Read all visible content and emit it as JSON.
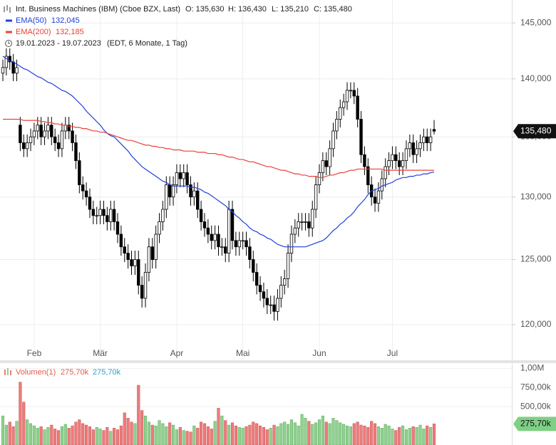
{
  "chart_data": [
    {
      "type": "candlestick",
      "title": "Int. Business Machines (IBM) (Cboe BZX, Last)",
      "ohlc_labels": [
        "O: 135,630",
        "H: 136,430",
        "L: 135,210",
        "C: 135,480"
      ],
      "date_range": "19.01.2023 - 19.07.2023",
      "date_note": "(EDT, 6 Monate, 1 Tag)",
      "last_label": "135,480",
      "log_scale": true,
      "grid": true,
      "up_color": "#ffffff",
      "down_color": "#000000",
      "categories": [
        null,
        null,
        null,
        null,
        null,
        null,
        null,
        null,
        null,
        "Feb",
        null,
        null,
        null,
        null,
        null,
        null,
        null,
        null,
        null,
        null,
        null,
        null,
        null,
        null,
        null,
        null,
        null,
        null,
        "Mär",
        null,
        null,
        null,
        null,
        null,
        null,
        null,
        null,
        null,
        null,
        null,
        null,
        null,
        null,
        null,
        null,
        null,
        null,
        null,
        null,
        null,
        "Apr",
        null,
        null,
        null,
        null,
        null,
        null,
        null,
        null,
        null,
        null,
        null,
        null,
        null,
        null,
        null,
        null,
        null,
        null,
        "Mai",
        null,
        null,
        null,
        null,
        null,
        null,
        null,
        null,
        null,
        null,
        null,
        null,
        null,
        null,
        null,
        null,
        null,
        null,
        null,
        null,
        null,
        "Jun",
        null,
        null,
        null,
        null,
        null,
        null,
        null,
        null,
        null,
        null,
        null,
        null,
        null,
        null,
        null,
        null,
        null,
        null,
        null,
        null,
        "Jul",
        null,
        null,
        null,
        null,
        null,
        null,
        null,
        null,
        null,
        null,
        null,
        null
      ],
      "open": [
        140.5,
        141,
        142,
        141.5,
        140.5,
        136,
        134.5,
        134,
        134.5,
        135,
        135.5,
        136,
        135,
        135.5,
        136,
        135,
        134.5,
        134,
        135.5,
        136,
        135.5,
        134.5,
        133,
        131,
        130.5,
        130,
        129,
        128.5,
        128.5,
        129,
        128.5,
        128,
        129,
        128,
        127,
        126,
        125.5,
        125,
        124.5,
        125,
        123,
        122,
        124,
        126,
        125,
        127,
        128,
        129,
        131,
        130,
        131,
        132,
        131.5,
        132,
        131,
        130,
        130.5,
        129,
        128,
        127.5,
        127,
        126.5,
        127,
        126,
        126,
        125.5,
        129,
        126.5,
        126,
        126.5,
        126.5,
        126,
        125,
        124,
        123,
        122.5,
        122,
        121.5,
        121.5,
        121,
        122,
        123,
        123.5,
        125.5,
        127,
        127.5,
        128,
        128,
        128,
        127.5,
        129,
        131,
        132,
        133,
        132.5,
        134,
        135.5,
        136.5,
        137.5,
        138,
        139,
        139,
        138.5,
        136.5,
        133.5,
        132.5,
        131,
        130,
        129.5,
        130.5,
        131.5,
        132.5,
        133,
        133.5,
        133,
        132.5,
        133,
        134,
        134.5,
        133.5,
        134,
        134.5,
        135,
        134.5,
        135.63
      ],
      "high": [
        141.7,
        142.7,
        142.7,
        142.2,
        141.7,
        136.7,
        135.2,
        135.2,
        135.7,
        136.2,
        136.7,
        136.7,
        136.2,
        136.7,
        136.7,
        135.7,
        135.2,
        136.2,
        136.7,
        136.7,
        136.2,
        135.2,
        133.7,
        131.7,
        131.2,
        130.7,
        129.7,
        129.2,
        129.7,
        129.7,
        129.2,
        129.7,
        129.7,
        128.7,
        127.7,
        126.7,
        126.2,
        125.7,
        125.7,
        125.7,
        123.7,
        124.7,
        126.7,
        126.7,
        127.7,
        128.7,
        129.7,
        131.7,
        131.7,
        131.7,
        132.7,
        132.7,
        132.7,
        132.7,
        131.7,
        131.2,
        131.2,
        129.7,
        128.7,
        128.2,
        127.7,
        127.7,
        127.7,
        126.7,
        126.7,
        129.7,
        129.7,
        127.2,
        127.2,
        127.2,
        127.2,
        126.7,
        125.7,
        124.7,
        123.7,
        123.2,
        122.7,
        122.2,
        122.2,
        122.7,
        123.7,
        124.2,
        126.2,
        127.7,
        128.2,
        128.7,
        128.7,
        128.7,
        128.7,
        129.7,
        131.7,
        132.7,
        133.7,
        133.7,
        134.7,
        136.2,
        137.2,
        138.2,
        138.7,
        139.7,
        139.7,
        139.7,
        139.2,
        137.2,
        134.2,
        133.2,
        131.7,
        130.7,
        131.2,
        132.2,
        133.2,
        133.7,
        134.2,
        134.2,
        133.7,
        133.7,
        134.7,
        135.2,
        135.2,
        134.7,
        135.2,
        135.7,
        135.7,
        135.7,
        136.43
      ],
      "low": [
        139.8,
        140.3,
        140.8,
        139.8,
        139.8,
        133.8,
        133.3,
        133.3,
        133.8,
        134.3,
        134.8,
        134.3,
        134.3,
        134.8,
        134.3,
        133.8,
        133.3,
        133.3,
        134.8,
        134.8,
        133.8,
        132.3,
        130.3,
        129.8,
        129.3,
        128.3,
        127.8,
        127.8,
        127.8,
        127.8,
        127.3,
        127.3,
        127.3,
        126.3,
        125.3,
        124.8,
        124.3,
        123.8,
        123.8,
        122.3,
        121.3,
        121.3,
        123.3,
        124.3,
        124.3,
        126.3,
        127.3,
        128.3,
        129.3,
        129.3,
        130.3,
        130.8,
        130.8,
        130.3,
        129.3,
        129.3,
        128.3,
        127.3,
        126.8,
        126.3,
        125.8,
        125.8,
        125.3,
        125.3,
        124.8,
        124.8,
        125.8,
        125.3,
        125.3,
        125.8,
        125.3,
        124.3,
        123.3,
        122.3,
        121.8,
        121.3,
        120.8,
        120.8,
        120.3,
        120.3,
        121.3,
        122.3,
        122.8,
        124.8,
        126.3,
        126.8,
        127.3,
        127.3,
        126.8,
        126.8,
        128.3,
        130.3,
        131.3,
        131.8,
        131.8,
        133.3,
        134.8,
        135.8,
        136.8,
        137.3,
        138.3,
        137.8,
        135.8,
        132.8,
        131.8,
        130.3,
        129.3,
        128.8,
        128.8,
        129.8,
        130.8,
        131.8,
        132.3,
        132.3,
        131.8,
        131.8,
        132.3,
        133.3,
        132.8,
        132.8,
        133.3,
        133.8,
        133.8,
        133.8,
        135.21
      ],
      "close": [
        141,
        142,
        141.5,
        140.5,
        141,
        134.5,
        134,
        134.5,
        135,
        135.5,
        136,
        135,
        135.5,
        136,
        135,
        134.5,
        134,
        135.5,
        136,
        135.5,
        134.5,
        133,
        131,
        130.5,
        130,
        129,
        128.5,
        128.5,
        129,
        128.5,
        128,
        129,
        128,
        127,
        126,
        125.5,
        125,
        124.5,
        125,
        123,
        122,
        124,
        126,
        125,
        127,
        128,
        129,
        131,
        130,
        131,
        132,
        131.5,
        132,
        131,
        130,
        130.5,
        129,
        128,
        127.5,
        127,
        126.5,
        127,
        126,
        126,
        125.5,
        129,
        126.5,
        126,
        126.5,
        126.5,
        126,
        125,
        124,
        123,
        122.5,
        122,
        121.5,
        121.5,
        121,
        122,
        123,
        123.5,
        125.5,
        127,
        127.5,
        128,
        128,
        128,
        127.5,
        129,
        131,
        132,
        133,
        132.5,
        134,
        135.5,
        136.5,
        137.5,
        138,
        139,
        139,
        138.5,
        136.5,
        133.5,
        132.5,
        131,
        130,
        129.5,
        130.5,
        131.5,
        132.5,
        133,
        133.5,
        133,
        132.5,
        133,
        134,
        134.5,
        133.5,
        134,
        134.5,
        135,
        134.5,
        135,
        135.48
      ],
      "lines": [
        {
          "name": "EMA(50)",
          "color": "#1f3fdb",
          "last_label": "132,045",
          "values": [
            142,
            141.8,
            141.6,
            141.5,
            141.3,
            141.1,
            140.9,
            140.8,
            140.6,
            140.4,
            140.2,
            140.1,
            139.9,
            139.7,
            139.6,
            139.4,
            139.2,
            139,
            138.9,
            138.7,
            138.5,
            138.2,
            137.9,
            137.6,
            137.2,
            136.9,
            136.6,
            136.3,
            136,
            135.6,
            135.3,
            135.1,
            135,
            134.7,
            134.4,
            134.1,
            133.8,
            133.4,
            133.1,
            132.8,
            132.5,
            132.3,
            132.1,
            131.9,
            131.7,
            131.5,
            131.3,
            131.2,
            131,
            130.9,
            130.9,
            130.9,
            130.9,
            130.9,
            130.8,
            130.8,
            130.7,
            130.6,
            130.4,
            130.3,
            130.1,
            129.9,
            129.7,
            129.5,
            129.3,
            129,
            128.8,
            128.5,
            128.3,
            128,
            127.8,
            127.5,
            127.3,
            127.2,
            127,
            126.9,
            126.7,
            126.6,
            126.4,
            126.2,
            126.1,
            126,
            126,
            126,
            126,
            126,
            126,
            126,
            126.1,
            126.2,
            126.3,
            126.4,
            126.5,
            126.7,
            127,
            127.3,
            127.5,
            127.8,
            128,
            128.3,
            128.5,
            128.8,
            129.2,
            129.5,
            129.8,
            130.2,
            130.5,
            130.6,
            130.7,
            130.9,
            131,
            131.1,
            131.2,
            131.4,
            131.5,
            131.6,
            131.6,
            131.7,
            131.7,
            131.8,
            131.8,
            131.9,
            131.9,
            132,
            132.05
          ]
        },
        {
          "name": "EMA(200)",
          "color": "#e8413a",
          "last_label": "132,185",
          "values": [
            136.5,
            136.5,
            136.5,
            136.5,
            136.5,
            136.5,
            136.4,
            136.4,
            136.4,
            136.4,
            136.4,
            136.3,
            136.3,
            136.2,
            136.2,
            136.1,
            136.1,
            136,
            136,
            135.9,
            135.9,
            135.8,
            135.8,
            135.7,
            135.7,
            135.6,
            135.5,
            135.5,
            135.4,
            135.4,
            135.3,
            135.2,
            135.1,
            135,
            134.9,
            134.8,
            134.7,
            134.7,
            134.6,
            134.5,
            134.4,
            134.3,
            134.3,
            134.2,
            134.2,
            134.1,
            134.1,
            134,
            134,
            133.9,
            133.9,
            133.9,
            133.8,
            133.8,
            133.8,
            133.8,
            133.7,
            133.7,
            133.7,
            133.6,
            133.6,
            133.6,
            133.5,
            133.5,
            133.4,
            133.3,
            133.3,
            133.2,
            133.1,
            133.1,
            133,
            132.9,
            132.9,
            132.8,
            132.7,
            132.6,
            132.5,
            132.5,
            132.4,
            132.3,
            132.2,
            132.2,
            132.1,
            132,
            131.9,
            131.9,
            131.8,
            131.8,
            131.7,
            131.7,
            131.7,
            131.6,
            131.6,
            131.7,
            131.8,
            131.8,
            131.9,
            132,
            132,
            132.1,
            132.2,
            132.2,
            132.3,
            132.3,
            132.3,
            132.3,
            132.3,
            132.3,
            132.3,
            132.3,
            132.2,
            132.2,
            132.2,
            132.2,
            132.2,
            132.2,
            132.2,
            132.2,
            132.2,
            132.2,
            132.2,
            132.2,
            132.2,
            132.2,
            132.185
          ]
        }
      ],
      "ylim": [
        117.4,
        147.1
      ],
      "yticks": [
        {
          "value": 120,
          "label": "120,000"
        },
        {
          "value": 125,
          "label": "125,000"
        },
        {
          "value": 130,
          "label": "130,000"
        },
        {
          "value": 135,
          "label": "135,000"
        },
        {
          "value": 140,
          "label": "140,000"
        },
        {
          "value": 145,
          "label": "145,000"
        }
      ]
    },
    {
      "type": "bar",
      "name": "Volumen(1)",
      "legend_values": [
        "275,70k",
        "275,70k"
      ],
      "last_label": "275,70k",
      "up_color": "#8fd18f",
      "down_color": "#ee7b7b",
      "marker_color": "#7fcf85",
      "grid": true,
      "values": [
        380000,
        260000,
        300000,
        240000,
        310000,
        820000,
        560000,
        330000,
        280000,
        250000,
        220000,
        240000,
        200000,
        230000,
        260000,
        210000,
        190000,
        240000,
        270000,
        220000,
        250000,
        300000,
        330000,
        280000,
        260000,
        240000,
        200000,
        230000,
        210000,
        190000,
        230000,
        180000,
        220000,
        200000,
        250000,
        420000,
        350000,
        300000,
        280000,
        780000,
        450000,
        380000,
        300000,
        260000,
        250000,
        320000,
        280000,
        240000,
        290000,
        260000,
        200000,
        230000,
        190000,
        180000,
        170000,
        250000,
        220000,
        300000,
        280000,
        240000,
        210000,
        310000,
        480000,
        380000,
        320000,
        260000,
        290000,
        250000,
        230000,
        220000,
        240000,
        260000,
        300000,
        280000,
        250000,
        230000,
        200000,
        220000,
        260000,
        240000,
        280000,
        300000,
        270000,
        330000,
        290000,
        250000,
        400000,
        350000,
        310000,
        270000,
        290000,
        330000,
        380000,
        300000,
        280000,
        350000,
        320000,
        290000,
        270000,
        250000,
        240000,
        280000,
        300000,
        260000,
        250000,
        230000,
        310000,
        280000,
        240000,
        220000,
        270000,
        250000,
        210000,
        190000,
        230000,
        250000,
        200000,
        220000,
        240000,
        230000,
        260000,
        210000,
        250000,
        230000,
        275700
      ],
      "ylim": [
        0,
        1050000
      ],
      "yticks": [
        {
          "value": 500000,
          "label": "500,00k"
        },
        {
          "value": 750000,
          "label": "750,00k"
        },
        {
          "value": 1000000,
          "label": "1,00M"
        }
      ]
    }
  ]
}
